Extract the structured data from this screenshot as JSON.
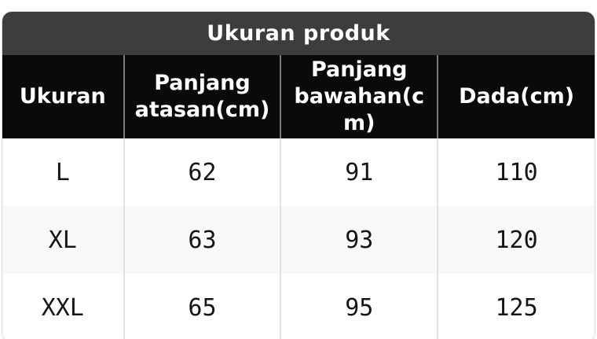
{
  "chart_data": {
    "type": "table",
    "title": "Ukuran produk",
    "columns": [
      "Ukuran",
      "Panjang atasan(cm)",
      "Panjang bawahan(cm)",
      "Dada(cm)"
    ],
    "rows": [
      [
        "L",
        "62",
        "91",
        "110"
      ],
      [
        "XL",
        "63",
        "93",
        "120"
      ],
      [
        "XXL",
        "65",
        "95",
        "125"
      ]
    ]
  },
  "colors": {
    "title_bar_bg": "#3d3d3d",
    "header_bg": "#0a0a0a",
    "header_text": "#ffffff",
    "row_alt_bg": "#f7f8f8",
    "body_divider": "#e2e2e2",
    "header_divider": "#7a7a7a",
    "outer_border": "#dcdcdc",
    "data_text": "#151515"
  }
}
